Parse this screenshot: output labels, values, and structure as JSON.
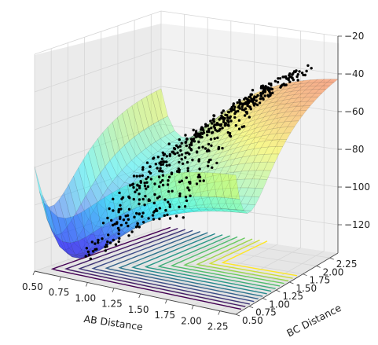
{
  "chart_data": {
    "type": "surface3d",
    "title": "",
    "xlabel": "AB Distance",
    "ylabel": "BC Distance",
    "zlabel": "",
    "x_ticks": [
      "0.50",
      "0.75",
      "1.00",
      "1.25",
      "1.50",
      "1.75",
      "2.00",
      "2.25"
    ],
    "y_ticks": [
      "0.50",
      "0.75",
      "1.00",
      "1.25",
      "1.50",
      "1.75",
      "2.00",
      "2.25"
    ],
    "z_ticks": [
      "−20",
      "−40",
      "−60",
      "−80",
      "−100",
      "−120"
    ],
    "xlim": [
      0.5,
      2.4
    ],
    "ylim": [
      0.5,
      2.4
    ],
    "zlim": [
      -135,
      -20
    ],
    "grid": true,
    "colormap_surface": "jet",
    "colormap_contour": "viridis",
    "scatter_color": "#000000",
    "surface_minimum": {
      "x": 0.75,
      "y": 1.75,
      "z": -128
    }
  }
}
